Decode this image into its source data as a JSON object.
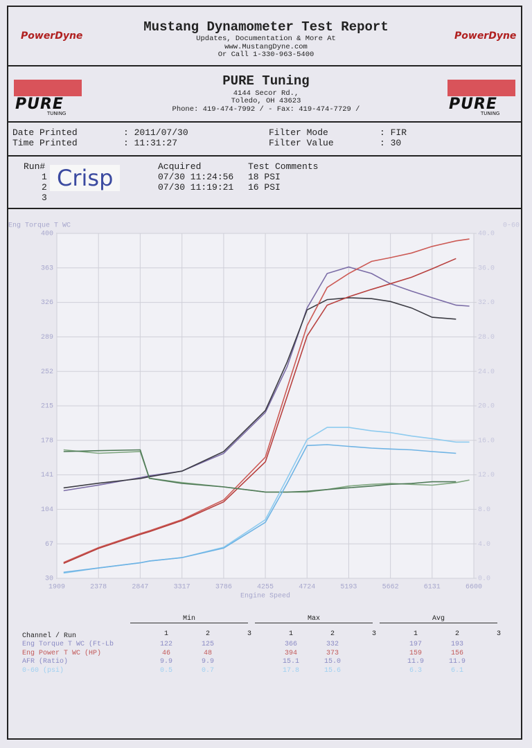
{
  "header": {
    "title": "Mustang Dynamometer Test Report",
    "lines": [
      "Updates, Documentation & More At",
      "www.MustangDyne.com",
      "Or Call 1-330-963-5400"
    ],
    "logo": "PowerDyne"
  },
  "shop": {
    "name": "PURE Tuning",
    "lines": [
      "4144 Secor Rd.,",
      "Toledo, OH  43623",
      "Phone: 419-474-7992 /  - Fax: 419-474-7729 /"
    ],
    "logo": "PURE",
    "logo_sub": "TUNING"
  },
  "info": [
    [
      "Date Printed",
      ": 2011/07/30",
      "Filter Mode",
      ": FIR"
    ],
    [
      "Time Printed",
      ": 11:31:27",
      "Filter Value",
      ": 30"
    ]
  ],
  "runs": {
    "headers": [
      "Run#",
      "Acquired",
      "Test Comments"
    ],
    "rows": [
      [
        "1",
        "07/30 11:24:56",
        "18 PSI"
      ],
      [
        "2",
        "07/30 11:19:21",
        "16 PSI"
      ],
      [
        "3"
      ]
    ],
    "note": "Crisp"
  },
  "chart_data": {
    "type": "line",
    "y_label": "Eng Torque T WC",
    "y2_label": "0-60",
    "x_label": "Engine Speed",
    "x": [
      1985,
      2378,
      2847,
      2950,
      3317,
      3786,
      4255,
      4500,
      4724,
      4950,
      5193,
      5450,
      5662,
      5900,
      6131,
      6400,
      6550
    ],
    "xlim": [
      1909,
      6600
    ],
    "xticks": [
      1909,
      2378,
      2847,
      3317,
      3786,
      4255,
      4724,
      5193,
      5662,
      6131,
      6600
    ],
    "ylim": [
      30,
      400
    ],
    "yticks": [
      30,
      67,
      104,
      141,
      178,
      215,
      252,
      289,
      326,
      363,
      400
    ],
    "y2lim": [
      0,
      40
    ],
    "y2ticks": [
      {
        "value": 0,
        "label": "0.0"
      },
      {
        "value": 4,
        "label": "4.0"
      },
      {
        "value": 8,
        "label": "8.0"
      },
      {
        "value": 12,
        "label": "12.0"
      },
      {
        "value": 16,
        "label": "16.0"
      },
      {
        "value": 20,
        "label": "20.0"
      },
      {
        "value": 24,
        "label": "24.0"
      },
      {
        "value": 28,
        "label": "28.0"
      },
      {
        "value": 32,
        "label": "32.0"
      },
      {
        "value": 36,
        "label": "36.0"
      },
      {
        "value": 40,
        "label": "40.0"
      }
    ],
    "grid": true,
    "series": [
      {
        "color": "#7b6ca6",
        "values": [
          124,
          130,
          138,
          140,
          145,
          164,
          208,
          257,
          320,
          357,
          364,
          357,
          346,
          338,
          331,
          323,
          322
        ]
      },
      {
        "color": "#3c3c44",
        "values": [
          127,
          132,
          137,
          139,
          145,
          166,
          210,
          262,
          318,
          329,
          331,
          330,
          327,
          320,
          310,
          308,
          null
        ]
      },
      {
        "color": "#cc5a55",
        "values": [
          47,
          63,
          78,
          81,
          93,
          114,
          160,
          234,
          301,
          342,
          357,
          370,
          374,
          379,
          386,
          392,
          394
        ]
      },
      {
        "color": "#b8413f",
        "values": [
          46,
          62,
          77,
          80,
          92,
          112,
          155,
          225,
          290,
          323,
          332,
          340,
          346,
          353,
          362,
          373,
          null
        ]
      },
      {
        "color": "#7fa67f",
        "axis": "y2",
        "values": [
          14.9,
          14.5,
          14.7,
          11.6,
          11.1,
          10.6,
          10.0,
          10.0,
          10.0,
          10.3,
          10.7,
          10.9,
          11.0,
          10.9,
          10.8,
          11.1,
          11.4
        ]
      },
      {
        "color": "#4f7a57",
        "axis": "y2",
        "values": [
          14.7,
          14.8,
          14.9,
          11.6,
          11.0,
          10.6,
          10.0,
          10.0,
          10.1,
          10.3,
          10.5,
          10.7,
          10.9,
          11.0,
          11.2,
          11.2,
          null
        ]
      },
      {
        "color": "#8ecbef",
        "axis": "y2",
        "values": [
          0.6,
          1.2,
          1.8,
          2.0,
          2.4,
          3.6,
          6.8,
          11.6,
          16.1,
          17.5,
          17.5,
          17.1,
          16.9,
          16.5,
          16.2,
          15.8,
          15.8
        ]
      },
      {
        "color": "#6eb3e4",
        "axis": "y2",
        "values": [
          0.7,
          1.2,
          1.8,
          2.0,
          2.4,
          3.5,
          6.5,
          11.0,
          15.4,
          15.5,
          15.3,
          15.1,
          15.0,
          14.9,
          14.7,
          14.5,
          null
        ]
      }
    ]
  },
  "summary": {
    "groups": [
      "Min",
      "Max",
      "Avg"
    ],
    "header": "Channel / Run",
    "run_numbers": [
      "1",
      "2",
      "3"
    ],
    "rows": [
      {
        "label": "Eng Torque T WC (Ft-Lb",
        "values": [
          "122",
          "125",
          "366",
          "332",
          "197",
          "193"
        ]
      },
      {
        "label": "Eng Power T WC (HP)",
        "values": [
          "46",
          "48",
          "394",
          "373",
          "159",
          "156"
        ]
      },
      {
        "label": "AFR (Ratio)",
        "values": [
          "9.9",
          "9.9",
          "15.1",
          "15.0",
          "11.9",
          "11.9"
        ]
      },
      {
        "label": "0-60 (psi)",
        "values": [
          "0.5",
          "0.7",
          "17.8",
          "15.6",
          "6.3",
          "6.1"
        ]
      }
    ]
  }
}
